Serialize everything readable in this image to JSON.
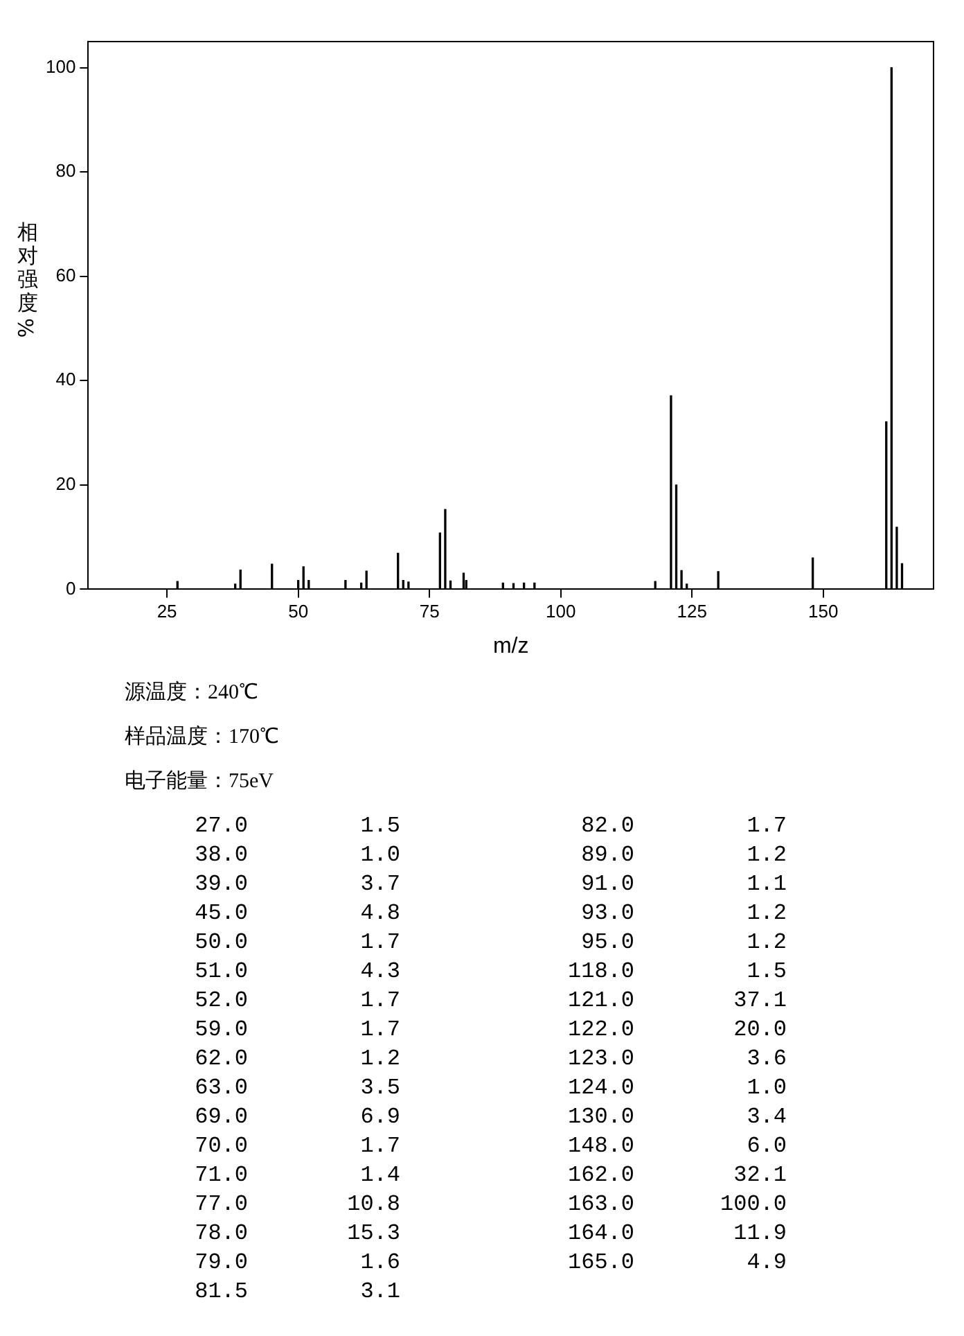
{
  "chart_data": [
    {
      "type": "bar",
      "xlabel": "m/z",
      "ylabel": "相对强度%",
      "x": [
        27,
        38,
        39,
        45,
        50,
        51,
        52,
        59,
        62,
        63,
        69,
        70,
        71,
        77,
        78,
        79,
        81.5,
        82,
        89,
        91,
        93,
        95,
        118,
        121,
        122,
        123,
        124,
        130,
        148,
        162,
        163,
        164,
        165
      ],
      "values": [
        1.5,
        1.0,
        3.7,
        4.8,
        1.7,
        4.3,
        1.7,
        1.7,
        1.2,
        3.5,
        6.9,
        1.7,
        1.4,
        10.8,
        15.3,
        1.6,
        3.1,
        1.7,
        1.2,
        1.1,
        1.2,
        1.2,
        1.5,
        37.1,
        20.0,
        3.6,
        1.0,
        3.4,
        6.0,
        32.1,
        100.0,
        11.9,
        4.9
      ],
      "color": "#000000",
      "xlim": [
        10,
        171
      ],
      "xticks": [
        25,
        50,
        75,
        100,
        125,
        150
      ],
      "ylim": [
        0,
        105
      ],
      "yticks": [
        0,
        20,
        40,
        60,
        80,
        100
      ],
      "grid": false,
      "legend": false,
      "annotations": [
        "源温度：240℃",
        "样品温度：170℃",
        "电子能量：75eV"
      ]
    },
    {
      "type": "other",
      "annotations": [
        "27.0",
        "1.5",
        "38.0",
        "1.0",
        "39.0",
        "3.7",
        "45.0",
        "4.8",
        "50.0",
        "1.7",
        "51.0",
        "4.3",
        "52.0",
        "1.7",
        "59.0",
        "1.7",
        "62.0",
        "1.2",
        "63.0",
        "3.5",
        "69.0",
        "6.9",
        "70.0",
        "1.7",
        "71.0",
        "1.4",
        "77.0",
        "10.8",
        "78.0",
        "15.3",
        "79.0",
        "1.6",
        "81.5",
        "3.1",
        "82.0",
        "1.7",
        "89.0",
        "1.2",
        "91.0",
        "1.1",
        "93.0",
        "1.2",
        "95.0",
        "1.2",
        "118.0",
        "1.5",
        "121.0",
        "37.1",
        "122.0",
        "20.0",
        "123.0",
        "3.6",
        "124.0",
        "1.0",
        "130.0",
        "3.4",
        "148.0",
        "6.0",
        "162.0",
        "32.1",
        "163.0",
        "100.0",
        "164.0",
        "11.9",
        "165.0",
        "4.9"
      ]
    }
  ]
}
